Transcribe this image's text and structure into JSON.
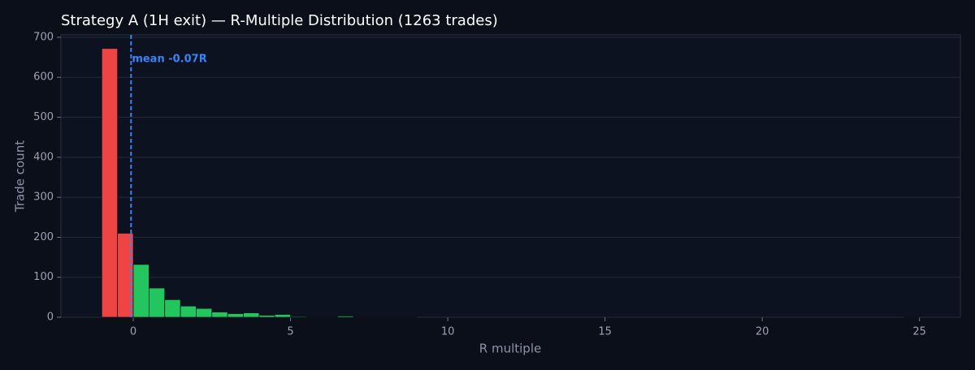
{
  "chart_data": {
    "type": "histogram",
    "title": "Strategy A (1H exit) — R-Multiple Distribution (1263 trades)",
    "x_label": "R multiple",
    "y_label": "Trade count",
    "bins": [
      -1,
      -0.5,
      0,
      0.5,
      1,
      1.5,
      2,
      2.5,
      3,
      3.5,
      4,
      4.5,
      5,
      5.5,
      6,
      6.5,
      7,
      7.5,
      8,
      8.5,
      9,
      9.5,
      10,
      10.5,
      11,
      11.5,
      12,
      12.5,
      13,
      13.5,
      14,
      14.5,
      15,
      15.5,
      16,
      16.5,
      17,
      17.5,
      18,
      18.5,
      19,
      19.5,
      20,
      20.5,
      21,
      21.5,
      22,
      22.5,
      23,
      23.5,
      24,
      24.5,
      25
    ],
    "counts": [
      672,
      210,
      132,
      73,
      44,
      28,
      22,
      13,
      9,
      11,
      5,
      7,
      2,
      1,
      1,
      3,
      1,
      1,
      1,
      1,
      0,
      0,
      0,
      0,
      0,
      0,
      0,
      0,
      0,
      0,
      0,
      0,
      0,
      0,
      0,
      0,
      0,
      0,
      0,
      0,
      0,
      0,
      0,
      0,
      0,
      0,
      0,
      0,
      0,
      0,
      0,
      1
    ],
    "negative_color": "#ef4444",
    "positive_color": "#22c55e",
    "mean_line": {
      "value": -0.07,
      "label": "mean -0.07R",
      "color": "#3b82f6"
    },
    "xlim": [
      -2.3,
      26.3
    ],
    "ylim": [
      0,
      706
    ],
    "xticks": [
      0,
      5,
      10,
      15,
      20,
      25
    ],
    "yticks": [
      0,
      100,
      200,
      300,
      400,
      500,
      600,
      700
    ],
    "grid": true
  }
}
